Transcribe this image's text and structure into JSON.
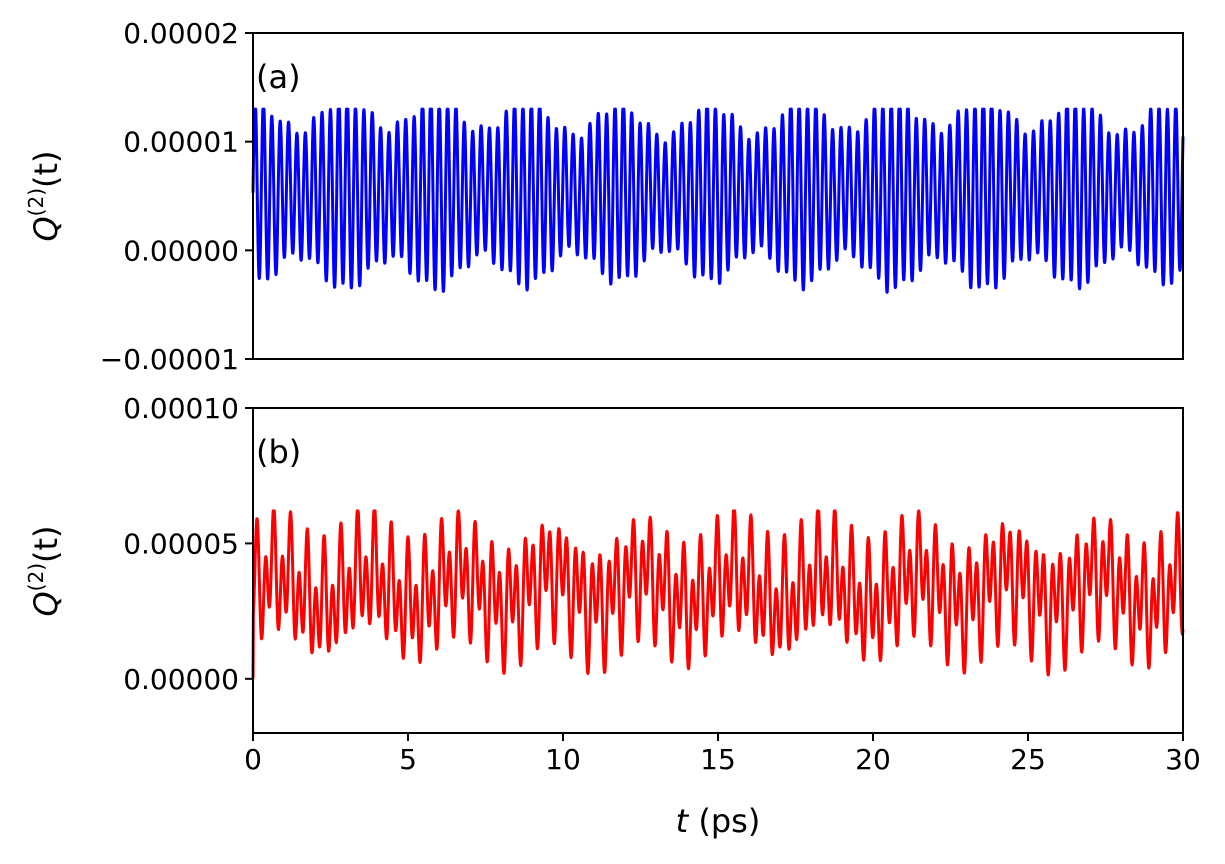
{
  "figure": {
    "x_axis_label_italic": "t",
    "x_axis_label_unit": " (ps)"
  },
  "chart_data": [
    {
      "type": "line",
      "panel_label": "(a)",
      "ylabel_base": "Q",
      "ylabel_sup": "(2)",
      "ylabel_arg": "(t)",
      "xlim": [
        0,
        30
      ],
      "ylim": [
        -1e-05,
        2e-05
      ],
      "x_ticks": [],
      "y_ticks": [
        {
          "value": -1e-05,
          "label": "−0.00001"
        },
        {
          "value": 0.0,
          "label": "0.00000"
        },
        {
          "value": 1e-05,
          "label": "0.00001"
        },
        {
          "value": 2e-05,
          "label": "0.00002"
        }
      ],
      "grid": false,
      "series": [
        {
          "color": "#0000ff",
          "description": "fast oscillation around ~0.000005, peaks about 0.0000115-0.000013, troughs about -0.0000055 to 0.0000005, with envelope beating period ~3 ps",
          "x_start": 0,
          "x_end": 30,
          "mean": 5.3e-06,
          "fast_period_ps": 0.27,
          "envelope_period_ps": 2.95,
          "max_peak": 1.3e-05,
          "min_trough": -5.5e-06
        }
      ]
    },
    {
      "type": "line",
      "panel_label": "(b)",
      "ylabel_base": "Q",
      "ylabel_sup": "(2)",
      "ylabel_arg": "(t)",
      "xlim": [
        0,
        30
      ],
      "ylim": [
        -2e-05,
        0.0001
      ],
      "x_ticks": [
        {
          "value": 0,
          "label": "0"
        },
        {
          "value": 5,
          "label": "5"
        },
        {
          "value": 10,
          "label": "10"
        },
        {
          "value": 15,
          "label": "15"
        },
        {
          "value": 20,
          "label": "20"
        },
        {
          "value": 25,
          "label": "25"
        },
        {
          "value": 30,
          "label": "30"
        }
      ],
      "y_ticks": [
        {
          "value": 0.0,
          "label": "0.00000"
        },
        {
          "value": 5e-05,
          "label": "0.00005"
        },
        {
          "value": 0.0001,
          "label": "0.00010"
        }
      ],
      "grid": false,
      "series": [
        {
          "color": "#ff0000",
          "description": "quasi-periodic oscillation between about -0.000005 and 0.000062, mean about 0.000033",
          "x_start": 0,
          "x_end": 30,
          "start_value": 0.0,
          "mean": 3.3e-05,
          "max_peak": 6.2e-05,
          "min_trough": -5e-06
        }
      ]
    }
  ]
}
